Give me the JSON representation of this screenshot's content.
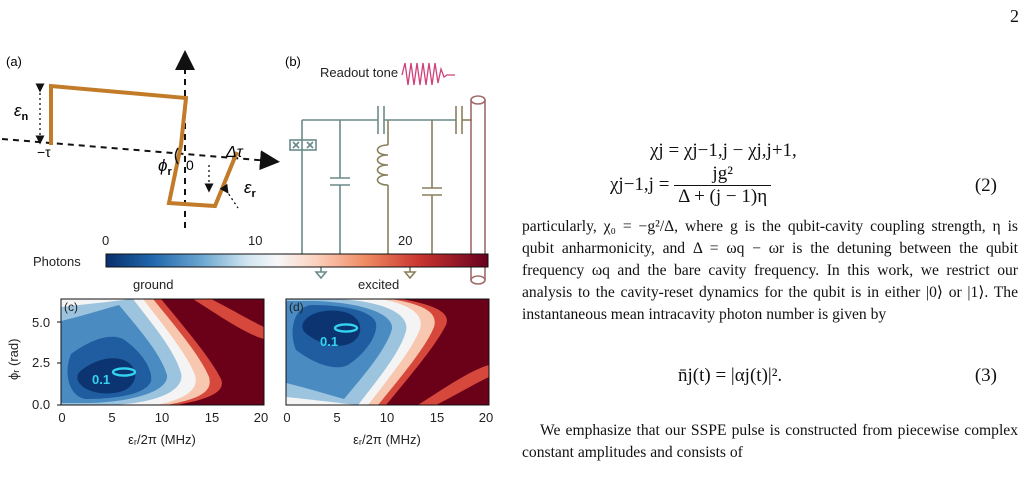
{
  "page_number": "2",
  "fig": {
    "a_label": "(a)",
    "b_label": "(b)",
    "c_label": "(c)",
    "d_label": "(d)",
    "a_eps_n": "ε",
    "a_eps_n_sub": "n",
    "a_minus_tau": "−τ",
    "a_phi": "ϕ",
    "a_phi_sub": "r",
    "a_zero": "0",
    "a_dtau": "Δτ",
    "a_eps_r": "ε",
    "a_eps_r_sub": "r",
    "b_readout": "Readout tone",
    "colorbar_title": "Photons",
    "colorbar_ticks": [
      "0",
      "10",
      "20"
    ],
    "panel_c_title": "ground",
    "panel_d_title": "excited",
    "ylabel": "ϕᵣ (rad)",
    "xlabel": "εᵣ/2π (MHz)",
    "yticks": [
      "0.0",
      "2.5",
      "5.0"
    ],
    "xticks": [
      "0",
      "5",
      "10",
      "15",
      "20"
    ],
    "contour_label": "0.1"
  },
  "colors": {
    "pulse": "#c27b29",
    "circuit": "#6a8a8a",
    "readout_wave": "#d0407a",
    "cavity": "#a06a6a",
    "contour": "#34d3f0"
  },
  "eq2": {
    "line1": "χj = χj−1,j − χj,j+1,",
    "line2_lhs": "χj−1,j =",
    "line2_num": "jg²",
    "line2_den": "Δ + (j − 1)η",
    "number": "(2)"
  },
  "para1": "particularly, χ₀ = −g²/Δ, where g is the qubit-cavity coupling strength, η is qubit anharmonicity, and Δ = ωq − ωr is the detuning between the qubit frequency ωq and the bare cavity frequency. In this work, we restrict our analysis to the cavity-reset dynamics for the qubit is in either |0⟩ or |1⟩. The instantaneous mean intracavity photon number is given by",
  "eq3": {
    "text": "n̄j(t) = |αj(t)|².",
    "number": "(3)"
  },
  "para2": "We emphasize that our SSPE pulse is constructed from piecewise complex constant amplitudes and consists of"
}
